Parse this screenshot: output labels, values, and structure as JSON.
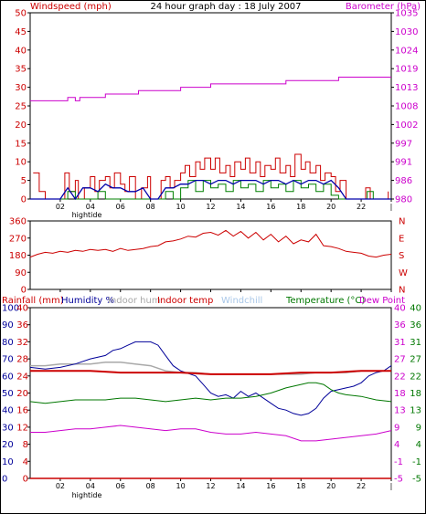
{
  "title": "24 hour graph day : 18 July 2007",
  "colors": {
    "windspeed": "#cc0000",
    "gust": "#cc0000",
    "wind_avg": "#0000aa",
    "wind_green": "#008000",
    "barometer": "#cc00cc",
    "direction": "#cc0000",
    "rainfall": "#cc0000",
    "humidity": "#000099",
    "indoor_hum": "#a8a8a8",
    "indoor_temp": "#cc0000",
    "windchill": "#a9c7e8",
    "temperature": "#007700",
    "dew_point": "#cc00cc",
    "frame": "#000000"
  },
  "x_axis": {
    "ticks": [
      "02",
      "04",
      "06",
      "08",
      "10",
      "12",
      "14",
      "16",
      "18",
      "20",
      "22",
      "|"
    ],
    "hightide_label": "hightide"
  },
  "chart_data": [
    {
      "type": "line",
      "name": "wind",
      "left_label": "Windspeed (mph)",
      "right_label": "Barometer (hPa)",
      "left_ticks": [
        0,
        5,
        10,
        15,
        20,
        25,
        30,
        35,
        40,
        45,
        50
      ],
      "right_ticks": [
        980,
        986,
        991,
        997,
        1002,
        1008,
        1013,
        1019,
        1024,
        1030,
        1035
      ],
      "ylim_left": [
        0,
        50
      ],
      "ylim_right": [
        980,
        1035
      ],
      "x_hours": [
        0,
        24
      ],
      "gust": [
        [
          0.2,
          7
        ],
        [
          0.6,
          2
        ],
        [
          1.0,
          0
        ],
        [
          2.0,
          0
        ],
        [
          2.3,
          7
        ],
        [
          2.6,
          2
        ],
        [
          3.0,
          5
        ],
        [
          3.2,
          0
        ],
        [
          3.6,
          3
        ],
        [
          4.0,
          6
        ],
        [
          4.3,
          2
        ],
        [
          4.6,
          5
        ],
        [
          5.0,
          6
        ],
        [
          5.3,
          3
        ],
        [
          5.6,
          7
        ],
        [
          6.0,
          4
        ],
        [
          6.3,
          2
        ],
        [
          6.6,
          6
        ],
        [
          7.0,
          0
        ],
        [
          7.4,
          3
        ],
        [
          7.8,
          6
        ],
        [
          8.0,
          0
        ],
        [
          8.5,
          0
        ],
        [
          8.7,
          5
        ],
        [
          9.0,
          6
        ],
        [
          9.3,
          3
        ],
        [
          9.6,
          5
        ],
        [
          10.0,
          7
        ],
        [
          10.3,
          9
        ],
        [
          10.6,
          6
        ],
        [
          11.0,
          10
        ],
        [
          11.3,
          8
        ],
        [
          11.6,
          11
        ],
        [
          12.0,
          8
        ],
        [
          12.3,
          11
        ],
        [
          12.6,
          7
        ],
        [
          13.0,
          9
        ],
        [
          13.3,
          6
        ],
        [
          13.6,
          10
        ],
        [
          14.0,
          8
        ],
        [
          14.3,
          11
        ],
        [
          14.6,
          7
        ],
        [
          15.0,
          10
        ],
        [
          15.3,
          6
        ],
        [
          15.6,
          9
        ],
        [
          16.0,
          8
        ],
        [
          16.3,
          11
        ],
        [
          16.6,
          7
        ],
        [
          17.0,
          9
        ],
        [
          17.3,
          6
        ],
        [
          17.6,
          12
        ],
        [
          18.0,
          8
        ],
        [
          18.3,
          10
        ],
        [
          18.6,
          7
        ],
        [
          19.0,
          9
        ],
        [
          19.3,
          5
        ],
        [
          19.6,
          7
        ],
        [
          20.0,
          6
        ],
        [
          20.3,
          2
        ],
        [
          20.6,
          5
        ],
        [
          21.0,
          0
        ],
        [
          22.0,
          0
        ],
        [
          22.3,
          3
        ],
        [
          22.6,
          0
        ],
        [
          23.5,
          0
        ],
        [
          23.8,
          2
        ]
      ],
      "average": [
        [
          0,
          0
        ],
        [
          2.0,
          0
        ],
        [
          2.5,
          3
        ],
        [
          3.0,
          0
        ],
        [
          3.5,
          3
        ],
        [
          4.0,
          3
        ],
        [
          4.5,
          2
        ],
        [
          5.0,
          4
        ],
        [
          5.5,
          3
        ],
        [
          6.0,
          3
        ],
        [
          6.5,
          2
        ],
        [
          7.0,
          2
        ],
        [
          7.5,
          3
        ],
        [
          8.0,
          0
        ],
        [
          8.5,
          0
        ],
        [
          9.0,
          3
        ],
        [
          9.5,
          3
        ],
        [
          10.0,
          4
        ],
        [
          10.5,
          4
        ],
        [
          11.0,
          5
        ],
        [
          11.5,
          5
        ],
        [
          12.0,
          4
        ],
        [
          12.5,
          5
        ],
        [
          13.0,
          5
        ],
        [
          13.5,
          4
        ],
        [
          14.0,
          5
        ],
        [
          14.5,
          5
        ],
        [
          15.0,
          5
        ],
        [
          15.5,
          4
        ],
        [
          16.0,
          5
        ],
        [
          16.5,
          5
        ],
        [
          17.0,
          4
        ],
        [
          17.5,
          5
        ],
        [
          18.0,
          4
        ],
        [
          18.5,
          5
        ],
        [
          19.0,
          5
        ],
        [
          19.5,
          4
        ],
        [
          20.0,
          5
        ],
        [
          20.5,
          3
        ],
        [
          21.0,
          0
        ],
        [
          24,
          0
        ]
      ],
      "green": [
        [
          0,
          0
        ],
        [
          2.0,
          0
        ],
        [
          2.5,
          2
        ],
        [
          3.0,
          0
        ],
        [
          4.0,
          0
        ],
        [
          4.5,
          2
        ],
        [
          5.0,
          0
        ],
        [
          8.5,
          0
        ],
        [
          9.0,
          2
        ],
        [
          9.5,
          0
        ],
        [
          10.0,
          3
        ],
        [
          10.5,
          5
        ],
        [
          11.0,
          2
        ],
        [
          11.5,
          5
        ],
        [
          12.0,
          3
        ],
        [
          12.5,
          4
        ],
        [
          13.0,
          2
        ],
        [
          13.5,
          5
        ],
        [
          14.0,
          3
        ],
        [
          14.5,
          4
        ],
        [
          15.0,
          2
        ],
        [
          15.5,
          5
        ],
        [
          16.0,
          3
        ],
        [
          16.5,
          4
        ],
        [
          17.0,
          2
        ],
        [
          17.5,
          5
        ],
        [
          18.0,
          3
        ],
        [
          18.5,
          4
        ],
        [
          19.0,
          2
        ],
        [
          19.5,
          4
        ],
        [
          20.0,
          1
        ],
        [
          20.5,
          0
        ],
        [
          22.0,
          0
        ],
        [
          22.4,
          2
        ],
        [
          22.8,
          0
        ],
        [
          24,
          0
        ]
      ],
      "barometer": [
        [
          0,
          1009
        ],
        [
          2.5,
          1009
        ],
        [
          2.5,
          1010
        ],
        [
          3.0,
          1010
        ],
        [
          3.0,
          1009
        ],
        [
          3.3,
          1009
        ],
        [
          3.3,
          1010
        ],
        [
          5.0,
          1010
        ],
        [
          5.0,
          1011
        ],
        [
          7.2,
          1011
        ],
        [
          7.2,
          1012
        ],
        [
          10.0,
          1012
        ],
        [
          10.0,
          1013
        ],
        [
          12.0,
          1013
        ],
        [
          12.0,
          1014
        ],
        [
          17.0,
          1014
        ],
        [
          17.0,
          1015
        ],
        [
          20.5,
          1015
        ],
        [
          20.5,
          1016
        ],
        [
          24,
          1016
        ]
      ]
    },
    {
      "type": "line",
      "name": "direction",
      "left_ticks": [
        0,
        90,
        180,
        270,
        360
      ],
      "right_ticks": [
        "N",
        "W",
        "S",
        "E",
        "N"
      ],
      "ylim": [
        0,
        360
      ],
      "x_hours": [
        0,
        24
      ],
      "values": [
        [
          0,
          170
        ],
        [
          0.5,
          185
        ],
        [
          1,
          195
        ],
        [
          1.5,
          190
        ],
        [
          2,
          200
        ],
        [
          2.5,
          195
        ],
        [
          3,
          205
        ],
        [
          3.5,
          200
        ],
        [
          4,
          210
        ],
        [
          4.5,
          205
        ],
        [
          5,
          210
        ],
        [
          5.5,
          200
        ],
        [
          6,
          215
        ],
        [
          6.5,
          205
        ],
        [
          7,
          210
        ],
        [
          7.5,
          215
        ],
        [
          8,
          225
        ],
        [
          8.5,
          230
        ],
        [
          9,
          250
        ],
        [
          9.5,
          255
        ],
        [
          10,
          265
        ],
        [
          10.5,
          280
        ],
        [
          11,
          275
        ],
        [
          11.5,
          295
        ],
        [
          12,
          300
        ],
        [
          12.5,
          285
        ],
        [
          13,
          310
        ],
        [
          13.5,
          280
        ],
        [
          14,
          305
        ],
        [
          14.5,
          270
        ],
        [
          15,
          300
        ],
        [
          15.5,
          260
        ],
        [
          16,
          290
        ],
        [
          16.5,
          250
        ],
        [
          17,
          280
        ],
        [
          17.5,
          240
        ],
        [
          18,
          260
        ],
        [
          18.5,
          250
        ],
        [
          19,
          290
        ],
        [
          19.5,
          230
        ],
        [
          20,
          225
        ],
        [
          20.5,
          215
        ],
        [
          21,
          200
        ],
        [
          21.5,
          195
        ],
        [
          22,
          190
        ],
        [
          22.5,
          175
        ],
        [
          23,
          170
        ],
        [
          23.5,
          180
        ],
        [
          24,
          185
        ]
      ]
    },
    {
      "type": "line",
      "name": "temperature",
      "left_label": "Rainfall (mm)",
      "humidity_label": "Humidity %",
      "indoor_hum_label": "Indoor hum",
      "indoor_temp_label": "Indoor temp",
      "windchill_label": "Windchill",
      "temperature_label": "Temperature (°C)",
      "dew_point_label": "Dew Point",
      "rain_ticks": [
        0,
        4,
        8,
        12,
        16,
        20,
        24,
        28,
        32,
        36,
        40
      ],
      "humidity_ticks": [
        0,
        10,
        20,
        30,
        40,
        50,
        60,
        70,
        80,
        90,
        100
      ],
      "right_ticks_a": [
        -5,
        -1,
        4,
        9,
        13,
        18,
        22,
        27,
        31,
        36,
        40
      ],
      "right_ticks_b": [
        -5,
        -1,
        4,
        9,
        13,
        18,
        22,
        27,
        31,
        36,
        40
      ],
      "ylim_pct": [
        0,
        100
      ],
      "x_hours": [
        0,
        24
      ],
      "humidity": [
        [
          0,
          65
        ],
        [
          1,
          64
        ],
        [
          2,
          65
        ],
        [
          3,
          67
        ],
        [
          4,
          70
        ],
        [
          5,
          72
        ],
        [
          5.5,
          75
        ],
        [
          6,
          76
        ],
        [
          6.5,
          78
        ],
        [
          7,
          80
        ],
        [
          8,
          80
        ],
        [
          8.5,
          78
        ],
        [
          9,
          72
        ],
        [
          9.5,
          66
        ],
        [
          10,
          63
        ],
        [
          11,
          60
        ],
        [
          11.5,
          55
        ],
        [
          12,
          50
        ],
        [
          12.5,
          48
        ],
        [
          13,
          49
        ],
        [
          13.5,
          47
        ],
        [
          14,
          51
        ],
        [
          14.5,
          48
        ],
        [
          15,
          50
        ],
        [
          15.5,
          47
        ],
        [
          16,
          44
        ],
        [
          16.5,
          41
        ],
        [
          17,
          40
        ],
        [
          17.5,
          38
        ],
        [
          18,
          37
        ],
        [
          18.5,
          38
        ],
        [
          19,
          41
        ],
        [
          19.5,
          47
        ],
        [
          20,
          51
        ],
        [
          20.5,
          52
        ],
        [
          21,
          53
        ],
        [
          21.5,
          54
        ],
        [
          22,
          56
        ],
        [
          22.5,
          60
        ],
        [
          23,
          62
        ],
        [
          23.5,
          63
        ],
        [
          24,
          66
        ]
      ],
      "indoor_hum": [
        [
          0,
          66
        ],
        [
          1,
          66
        ],
        [
          2,
          67
        ],
        [
          3,
          67
        ],
        [
          4,
          67
        ],
        [
          5,
          68
        ],
        [
          6,
          68
        ],
        [
          7,
          67
        ],
        [
          8,
          66
        ],
        [
          9,
          63
        ],
        [
          10,
          62
        ],
        [
          11,
          62
        ],
        [
          12,
          61
        ],
        [
          13,
          61
        ],
        [
          14,
          61
        ],
        [
          15,
          61
        ],
        [
          16,
          61
        ],
        [
          17,
          61
        ],
        [
          18,
          61
        ],
        [
          19,
          62
        ],
        [
          20,
          62
        ],
        [
          21,
          62
        ],
        [
          22,
          63
        ],
        [
          23,
          63
        ],
        [
          24,
          63
        ]
      ],
      "indoor_temp": [
        [
          0,
          63
        ],
        [
          2,
          63
        ],
        [
          4,
          63
        ],
        [
          6,
          62
        ],
        [
          8,
          62
        ],
        [
          10,
          62
        ],
        [
          12,
          61
        ],
        [
          14,
          61
        ],
        [
          16,
          61
        ],
        [
          18,
          62
        ],
        [
          20,
          62
        ],
        [
          22,
          63
        ],
        [
          24,
          63
        ]
      ],
      "temperature": [
        [
          0,
          45
        ],
        [
          1,
          44
        ],
        [
          2,
          45
        ],
        [
          3,
          46
        ],
        [
          4,
          46
        ],
        [
          5,
          46
        ],
        [
          6,
          47
        ],
        [
          7,
          47
        ],
        [
          8,
          46
        ],
        [
          9,
          45
        ],
        [
          10,
          46
        ],
        [
          11,
          47
        ],
        [
          12,
          46
        ],
        [
          13,
          47
        ],
        [
          14,
          47
        ],
        [
          15,
          48
        ],
        [
          16,
          50
        ],
        [
          17,
          53
        ],
        [
          18,
          55
        ],
        [
          18.5,
          56
        ],
        [
          19,
          56
        ],
        [
          19.5,
          55
        ],
        [
          20,
          52
        ],
        [
          20.5,
          50
        ],
        [
          21,
          49
        ],
        [
          22,
          48
        ],
        [
          23,
          46
        ],
        [
          24,
          45
        ]
      ],
      "dew_point": [
        [
          0,
          27
        ],
        [
          1,
          27
        ],
        [
          2,
          28
        ],
        [
          3,
          29
        ],
        [
          4,
          29
        ],
        [
          5,
          30
        ],
        [
          6,
          31
        ],
        [
          7,
          30
        ],
        [
          8,
          29
        ],
        [
          9,
          28
        ],
        [
          10,
          29
        ],
        [
          11,
          29
        ],
        [
          12,
          27
        ],
        [
          13,
          26
        ],
        [
          14,
          26
        ],
        [
          15,
          27
        ],
        [
          16,
          26
        ],
        [
          17,
          25
        ],
        [
          18,
          22
        ],
        [
          19,
          22
        ],
        [
          20,
          23
        ],
        [
          21,
          24
        ],
        [
          22,
          25
        ],
        [
          23,
          26
        ],
        [
          24,
          28
        ]
      ],
      "rainfall": [
        [
          0,
          0
        ],
        [
          24,
          0
        ]
      ]
    }
  ]
}
